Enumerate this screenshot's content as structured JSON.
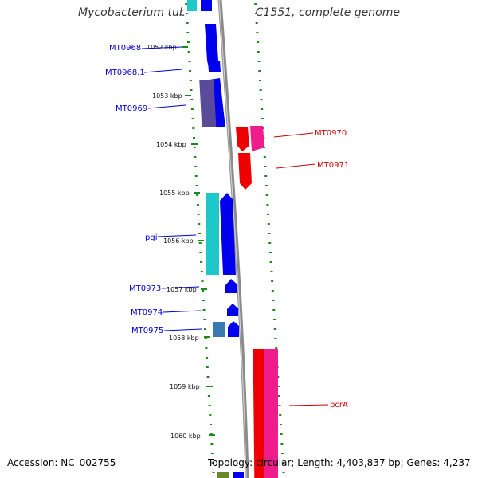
{
  "title": "Mycobacterium tuberculosis CDC1551, complete genome",
  "footer": {
    "accession": "Accession: NC_002755",
    "topology": "Topology: circular; Length: 4,403,837 bp; Genes: 4,237"
  },
  "colors": {
    "forward": "#0000ee",
    "reverse": "#ee0000",
    "pink": "#ee1c8c",
    "cyan": "#1ec8c8",
    "purple": "#5a4a9a",
    "steel": "#3a7ab0",
    "backbone": "#8a8a8a",
    "dots": "#1a8a1a"
  },
  "scale_labels": [
    "1052 kbp",
    "1053 kbp",
    "1054 kbp",
    "1055 kbp",
    "1056 kbp",
    "1057 kbp",
    "1058 kbp",
    "1059 kbp",
    "1060 kbp"
  ],
  "gene_labels": {
    "forward": [
      "MT0968",
      "MT0968.1",
      "MT0969",
      "pgi",
      "MT0973",
      "MT0974",
      "MT0975"
    ],
    "reverse": [
      "MT0970",
      "MT0971",
      "pcrA"
    ]
  }
}
